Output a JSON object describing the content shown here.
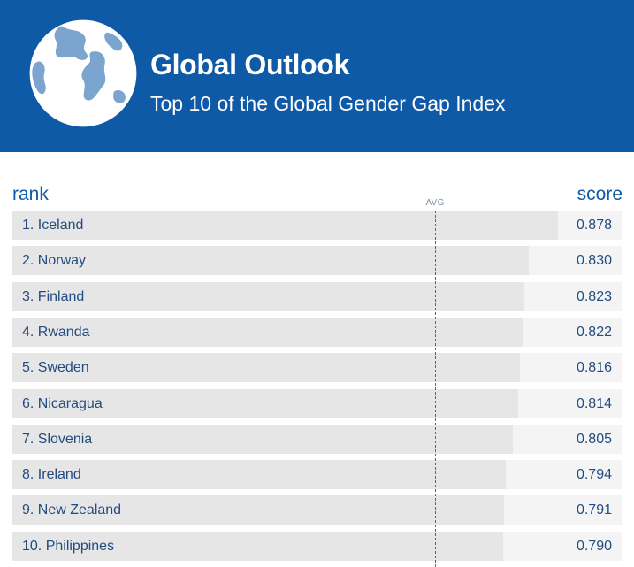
{
  "header": {
    "title": "Global Outlook",
    "subtitle": "Top 10 of the Global Gender Gap Index",
    "icon": "globe-icon",
    "background_color": "#0f5aa6"
  },
  "chart_data": {
    "type": "bar",
    "orientation": "horizontal",
    "title": "Global Outlook",
    "subtitle": "Top 10 of the Global Gender Gap Index",
    "rank_header": "rank",
    "score_header": "score",
    "avg_label": "AVG",
    "avg_value": 0.68,
    "xlim": [
      0,
      0.98
    ],
    "categories": [
      "1. Iceland",
      "2. Norway",
      "3. Finland",
      "4. Rwanda",
      "5. Sweden",
      "6. Nicaragua",
      "7. Slovenia",
      "8. Ireland",
      "9. New Zealand",
      "10. Philippines"
    ],
    "values": [
      0.878,
      0.83,
      0.823,
      0.822,
      0.816,
      0.814,
      0.805,
      0.794,
      0.791,
      0.79
    ],
    "value_labels": [
      "0.878",
      "0.830",
      "0.823",
      "0.822",
      "0.816",
      "0.814",
      "0.805",
      "0.794",
      "0.791",
      "0.790"
    ],
    "colors": {
      "bar": "#e6e6e7",
      "track": "#f4f4f5",
      "text": "#234c80",
      "avg_line": "#2d6fb4"
    }
  }
}
